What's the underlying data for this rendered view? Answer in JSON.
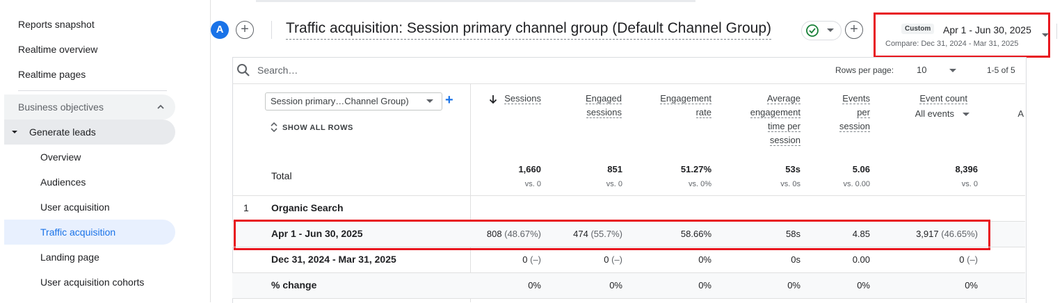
{
  "sidebar": {
    "top_items": [
      "Reports snapshot",
      "Realtime overview",
      "Realtime pages"
    ],
    "section": "Business objectives",
    "group": "Generate leads",
    "sub_items": [
      "Overview",
      "Audiences",
      "User acquisition",
      "Traffic acquisition",
      "Landing page",
      "User acquisition cohorts"
    ],
    "active_item": "Traffic acquisition"
  },
  "header": {
    "avatar_letter": "A",
    "title": "Traffic acquisition: Session primary channel group (Default Channel Group)",
    "date_badge": "Custom",
    "date_range": "Apr 1 - Jun 30, 2025",
    "compare_range": "Compare: Dec 31, 2024 - Mar 31, 2025"
  },
  "table": {
    "search_placeholder": "Search…",
    "rows_per_page_label": "Rows per page:",
    "rows_per_page": "10",
    "range_text": "1-5 of 5",
    "dimension": "Session primary…Channel Group)",
    "show_all_rows": "SHOW ALL ROWS",
    "headers": {
      "sessions": "Sessions",
      "engaged_1": "Engaged",
      "engaged_2": "sessions",
      "eng_rate_1": "Engagement",
      "eng_rate_2": "rate",
      "avg_1": "Average",
      "avg_2": "engagement",
      "avg_3": "time per",
      "avg_4": "session",
      "events_1": "Events",
      "events_2": "per",
      "events_3": "session",
      "event_count": "Event count",
      "all_events": "All events",
      "cut": "A"
    },
    "total": {
      "label": "Total",
      "sessions": "1,660",
      "engaged": "851",
      "eng_rate": "51.27%",
      "avg_time": "53s",
      "events_per": "5.06",
      "event_count": "8,396",
      "vs_sessions": "vs. 0",
      "vs_engaged": "vs. 0",
      "vs_eng_rate": "vs. 0%",
      "vs_avg_time": "vs. 0s",
      "vs_events_per": "vs. 0.00",
      "vs_event_count": "vs. 0"
    },
    "row1": {
      "index": "1",
      "channel": "Organic Search",
      "current": {
        "label": "Apr 1 - Jun 30, 2025",
        "sessions": "808",
        "sessions_pct": "(48.67%)",
        "engaged": "474",
        "engaged_pct": "(55.7%)",
        "eng_rate": "58.66%",
        "avg_time": "58s",
        "events_per": "4.85",
        "event_count": "3,917",
        "event_count_pct": "(46.65%)"
      },
      "previous": {
        "label": "Dec 31, 2024 - Mar 31, 2025",
        "sessions": "0",
        "sessions_pct": "(–)",
        "engaged": "0",
        "engaged_pct": "(–)",
        "eng_rate": "0%",
        "avg_time": "0s",
        "events_per": "0.00",
        "event_count": "0",
        "event_count_pct": "(–)"
      },
      "change": {
        "label": "% change",
        "sessions": "0%",
        "engaged": "0%",
        "eng_rate": "0%",
        "avg_time": "0%",
        "events_per": "0%",
        "event_count": "0%"
      }
    }
  }
}
